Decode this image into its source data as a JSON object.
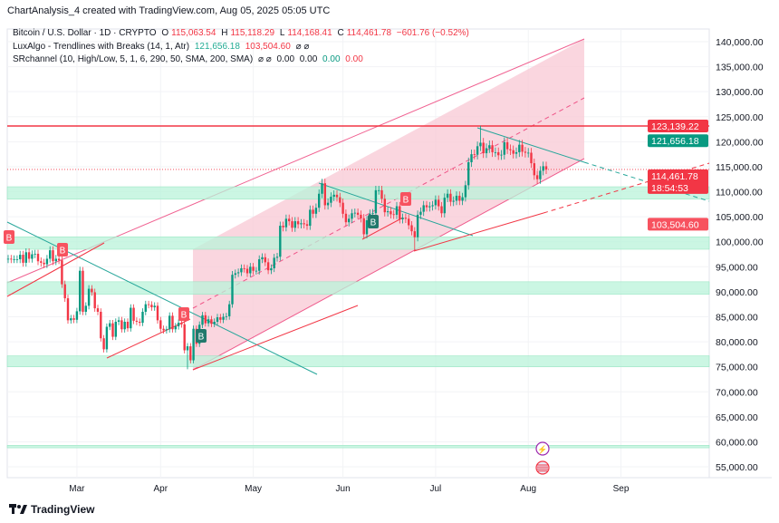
{
  "credit": "ChartAnalysis_4 created with TradingView.com, Aug 05, 2025 05:05 UTC",
  "legend": {
    "symbol": "Bitcoin / U.S. Dollar · 1D · CRYPTO",
    "o_label": "O",
    "o": "115,063.54",
    "h_label": "H",
    "h": "115,118.29",
    "l_label": "L",
    "l": "114,168.41",
    "c_label": "C",
    "c": "114,461.78",
    "change": "−601.76 (−0.52%)",
    "ind1": "LuxAlgo - Trendlines with Breaks (14, 1, Atr)",
    "ind1_v1": "121,656.18",
    "ind1_v2": "103,504.60",
    "ind2": "SRchannel (10, High/Low, 5, 1, 6, 290, 50, SMA, 200, SMA)",
    "ind2_v1": "0.00",
    "ind2_v2": "0.00",
    "ind2_v3": "0.00",
    "ind2_v4": "0.00",
    "hidden_icon": "eye-off-icon"
  },
  "footer": {
    "logo": "TradingView"
  },
  "colors": {
    "up": "#089981",
    "down": "#f23645",
    "channel": "#f8c8d4",
    "zone": "#b9f3d9",
    "trend_down": "#26a69a",
    "trend_up": "#f23645"
  },
  "chart_data": {
    "type": "candlestick",
    "start_date": "2025-02-06",
    "interval": "1D",
    "closes": [
      96600,
      96500,
      96500,
      96500,
      97400,
      95800,
      97900,
      96600,
      97500,
      97600,
      96100,
      95800,
      95500,
      96600,
      98300,
      96100,
      96600,
      96300,
      91500,
      88700,
      84300,
      84700,
      84400,
      86100,
      94200,
      86000,
      87200,
      90600,
      89900,
      86700,
      86000,
      80700,
      78500,
      83000,
      83700,
      81000,
      84000,
      84300,
      82500,
      84000,
      82700,
      86800,
      84200,
      84000,
      83800,
      86000,
      87500,
      87400,
      86900,
      87200,
      84300,
      82600,
      82300,
      82500,
      85200,
      82500,
      83100,
      83800,
      83500,
      78300,
      79100,
      76300,
      82600,
      79600,
      83400,
      85300,
      83700,
      84500,
      83600,
      84000,
      84900,
      84400,
      85000,
      85100,
      87500,
      93400,
      93700,
      93900,
      94700,
      94600,
      93700,
      95000,
      94200,
      94200,
      96500,
      96900,
      95900,
      94300,
      94700,
      96800,
      97000,
      103200,
      102900,
      104600,
      104100,
      102800,
      104100,
      103500,
      103700,
      103500,
      103200,
      106400,
      105600,
      106800,
      109600,
      111700,
      107300,
      107800,
      109000,
      109400,
      108900,
      107800,
      105600,
      103900,
      104600,
      105700,
      105800,
      105400,
      104700,
      101500,
      104300,
      105600,
      105700,
      110300,
      110300,
      108600,
      105900,
      106100,
      105500,
      105400,
      107100,
      104500,
      104800,
      104600,
      103300,
      102100,
      100900,
      105400,
      106000,
      107300,
      106900,
      107100,
      107300,
      108400,
      107100,
      105700,
      108800,
      109600,
      108000,
      108200,
      109200,
      108200,
      108900,
      111300,
      115900,
      117500,
      117400,
      119100,
      119800,
      117700,
      118700,
      119300,
      117900,
      117900,
      117300,
      117400,
      119900,
      118500,
      118300,
      117600,
      117900,
      119400,
      118000,
      117800,
      117800,
      115700,
      113300,
      112500,
      114200,
      115100,
      114461.78
    ],
    "first_open": 96500,
    "notable_extremes": [
      {
        "date": "2025-04-07",
        "low": 74500
      },
      {
        "date": "2025-07-14",
        "high": 123200
      },
      {
        "date": "2025-06-22",
        "low": 98200
      },
      {
        "date": "2025-03-02",
        "high": 95000
      }
    ],
    "x_ticks": [
      "Mar",
      "Apr",
      "May",
      "Jun",
      "Jul",
      "Aug",
      "Sep"
    ],
    "y_ticks": [
      "140,000.00",
      "135,000.00",
      "130,000.00",
      "125,000.00",
      "120,000.00",
      "115,000.00",
      "110,000.00",
      "105,000.00",
      "100,000.00",
      "95,000.00",
      "90,000.00",
      "85,000.00",
      "80,000.00",
      "75,000.00",
      "70,000.00",
      "65,000.00",
      "60,000.00",
      "55,000.00"
    ],
    "ylim": [
      53000,
      143000
    ],
    "price_labels": [
      {
        "text": "123,139.22",
        "color": "#f23645"
      },
      {
        "text": "121,656.18",
        "color": "#089981"
      },
      {
        "text": "114,461.78",
        "sub": "18:54:53",
        "color": "#f23645"
      },
      {
        "text": "103,504.60",
        "color": "#f7525f"
      }
    ],
    "horizontal_line": 123139.22,
    "current_price": 114461.78,
    "support_zones": [
      [
        108500,
        111000
      ],
      [
        98500,
        101000
      ],
      [
        89500,
        92000
      ],
      [
        75000,
        77200
      ],
      [
        58800,
        59300
      ]
    ],
    "break_labels": [
      {
        "text": "B",
        "type": "bearish"
      },
      {
        "text": "B",
        "type": "bearish"
      },
      {
        "text": "B",
        "type": "bearish"
      },
      {
        "text": "B",
        "type": "bearish"
      },
      {
        "text": "B",
        "type": "bullish"
      },
      {
        "text": "B",
        "type": "bullish"
      }
    ],
    "event_icons": [
      "lightning-icon",
      "us-flag-icon"
    ]
  }
}
